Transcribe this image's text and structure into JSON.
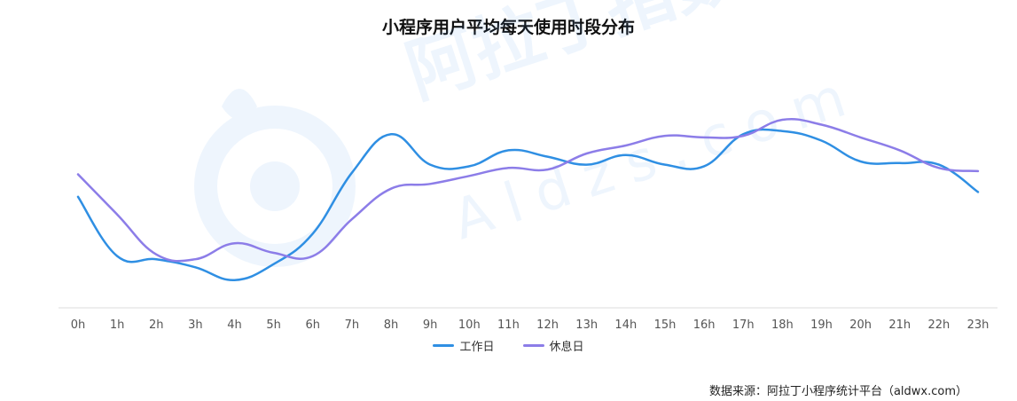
{
  "chart_data": {
    "type": "line",
    "title": "小程序用户平均每天使用时段分布",
    "xlabel": "",
    "ylabel": "",
    "categories": [
      "0h",
      "1h",
      "2h",
      "3h",
      "4h",
      "5h",
      "6h",
      "7h",
      "8h",
      "9h",
      "10h",
      "11h",
      "12h",
      "13h",
      "14h",
      "15h",
      "16h",
      "17h",
      "18h",
      "19h",
      "20h",
      "21h",
      "22h",
      "23h"
    ],
    "series": [
      {
        "name": "工作日",
        "color": "#2f8fe3",
        "values": [
          54,
          17,
          15,
          10,
          2,
          12,
          31,
          69,
          93,
          74,
          73,
          83,
          79,
          74,
          80,
          74,
          73,
          93,
          95,
          89,
          76,
          75,
          74,
          57
        ]
      },
      {
        "name": "休息日",
        "color": "#8c7de8",
        "values": [
          68,
          43,
          18,
          15,
          25,
          19,
          17,
          40,
          59,
          62,
          67,
          72,
          71,
          81,
          86,
          92,
          91,
          92,
          102,
          99,
          91,
          83,
          72,
          70
        ]
      }
    ],
    "ylim": [
      -7,
      138
    ],
    "grid": false,
    "legend_position": "bottom",
    "axis_color": "#dddddd",
    "watermark_text": "阿拉丁指数 Aldzs.com",
    "source": "数据来源：阿拉丁小程序统计平台（aldwx.com）"
  }
}
